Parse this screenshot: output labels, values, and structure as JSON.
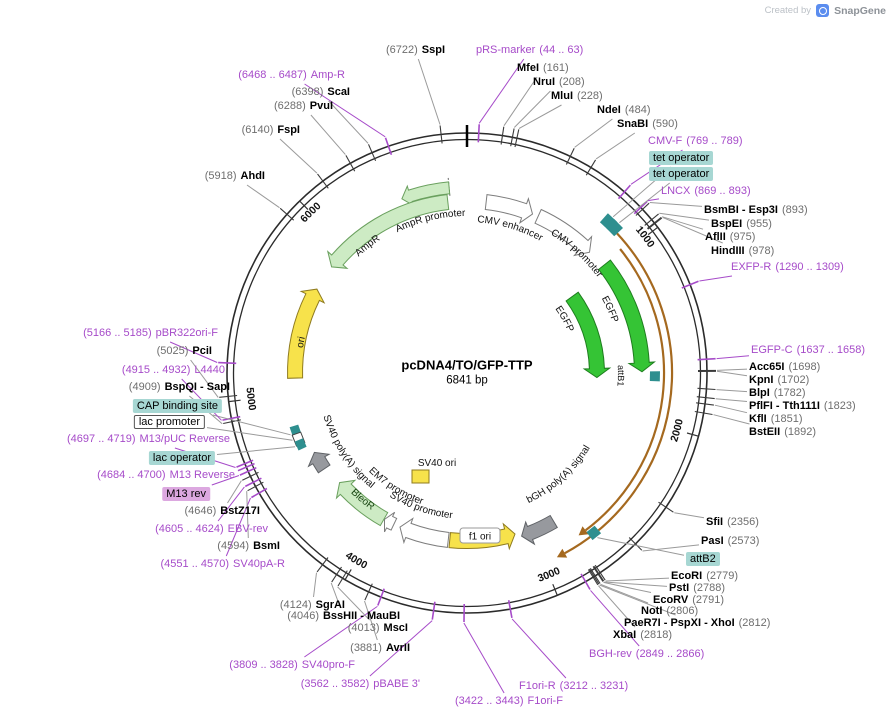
{
  "header": {
    "credit": "Created by",
    "brand": "SnapGene"
  },
  "plasmid": {
    "name": "p cDNA4/TO/GFP-TTP",
    "name_fixed": "pcDNA4/TO/GFP-TTP",
    "size": "6841 bp"
  },
  "axis_ticks": [
    "1000",
    "2000",
    "3000",
    "4000",
    "5000",
    "6000"
  ],
  "features": {
    "ampr_promoter": "AmpR promoter",
    "ampr": "AmpR",
    "ori": "ori",
    "cmv_enhancer": "CMV enhancer",
    "cmv_promoter": "CMV promoter",
    "egfp_outer": "EGFP",
    "egfp_inner": "EGFP",
    "attb1": "attB1",
    "bgh_polya": "bGH poly(A) signal",
    "f1_ori": "f1 ori",
    "sv40_promoter": "SV40 promoter",
    "sv40_ori": "SV40 ori",
    "em7_promoter": "EM7 promoter",
    "bleor": "BleoR",
    "sv40_polya": "SV40 poly(A) signal"
  },
  "labels": [
    {
      "name": "pRS-marker",
      "pos": "(44 .. 63)"
    },
    {
      "name": "MfeI",
      "pos": "(161)"
    },
    {
      "name": "NruI",
      "pos": "(208)"
    },
    {
      "name": "MluI",
      "pos": "(228)"
    },
    {
      "name": "NdeI",
      "pos": "(484)"
    },
    {
      "name": "SnaBI",
      "pos": "(590)"
    },
    {
      "name": "CMV-F",
      "pos": "(769 .. 789)"
    },
    {
      "name": "tet operator",
      "pos": ""
    },
    {
      "name": "tet operator",
      "pos": ""
    },
    {
      "name": "LNCX",
      "pos": "(869 .. 893)"
    },
    {
      "name": "BsmBI - Esp3I",
      "pos": "(893)"
    },
    {
      "name": "BspEI",
      "pos": "(955)"
    },
    {
      "name": "AflII",
      "pos": "(975)"
    },
    {
      "name": "HindIII",
      "pos": "(978)"
    },
    {
      "name": "EXFP-R",
      "pos": "(1290 .. 1309)"
    },
    {
      "name": "EGFP-C",
      "pos": "(1637 .. 1658)"
    },
    {
      "name": "Acc65I",
      "pos": "(1698)"
    },
    {
      "name": "KpnI",
      "pos": "(1702)"
    },
    {
      "name": "BlpI",
      "pos": "(1782)"
    },
    {
      "name": "PflFI - Tth111I",
      "pos": "(1823)"
    },
    {
      "name": "KflI",
      "pos": "(1851)"
    },
    {
      "name": "BstEII",
      "pos": "(1892)"
    },
    {
      "name": "SfiI",
      "pos": "(2356)"
    },
    {
      "name": "PasI",
      "pos": "(2573)"
    },
    {
      "name": "attB2",
      "pos": ""
    },
    {
      "name": "EcoRI",
      "pos": "(2779)"
    },
    {
      "name": "PstI",
      "pos": "(2788)"
    },
    {
      "name": "EcoRV",
      "pos": "(2791)"
    },
    {
      "name": "NotI",
      "pos": "(2806)"
    },
    {
      "name": "PaeR7I - PspXI - XhoI",
      "pos": "(2812)"
    },
    {
      "name": "XbaI",
      "pos": "(2818)"
    },
    {
      "name": "BGH-rev",
      "pos": "(2849 .. 2866)"
    },
    {
      "name": "F1ori-R",
      "pos": "(3212 .. 3231)"
    },
    {
      "name": "F1ori-F",
      "pos": "(3422 .. 3443)"
    },
    {
      "name": "pBABE 3'",
      "pos": "(3562 .. 3582)"
    },
    {
      "name": "SV40pro-F",
      "pos": "(3809 .. 3828)"
    },
    {
      "name": "AvrII",
      "pos": "(3881)"
    },
    {
      "name": "MscI",
      "pos": "(4013)"
    },
    {
      "name": "BssHII - MauBI",
      "pos": "(4046)"
    },
    {
      "name": "SgrAI",
      "pos": "(4124)"
    },
    {
      "name": "SV40pA-R",
      "pos": "(4551 .. 4570)"
    },
    {
      "name": "BsmI",
      "pos": "(4594)"
    },
    {
      "name": "EBV-rev",
      "pos": "(4605 .. 4624)"
    },
    {
      "name": "BstZ17I",
      "pos": "(4646)"
    },
    {
      "name": "M13 rev",
      "pos": ""
    },
    {
      "name": "M13 Reverse",
      "pos": "(4684 .. 4700)"
    },
    {
      "name": "lac operator",
      "pos": ""
    },
    {
      "name": "M13/pUC Reverse",
      "pos": "(4697 .. 4719)"
    },
    {
      "name": "lac promoter",
      "pos": ""
    },
    {
      "name": "CAP binding site",
      "pos": ""
    },
    {
      "name": "BspQI - SapI",
      "pos": "(4909)"
    },
    {
      "name": "L4440",
      "pos": "(4915 .. 4932)"
    },
    {
      "name": "PciI",
      "pos": "(5025)"
    },
    {
      "name": "pBR322ori-F",
      "pos": "(5166 .. 5185)"
    },
    {
      "name": "AhdI",
      "pos": "(5918)"
    },
    {
      "name": "FspI",
      "pos": "(6140)"
    },
    {
      "name": "PvuI",
      "pos": "(6288)"
    },
    {
      "name": "ScaI",
      "pos": "(6398)"
    },
    {
      "name": "Amp-R",
      "pos": "(6468 .. 6487)"
    },
    {
      "name": "SspI",
      "pos": "(6722)"
    }
  ],
  "colors": {
    "primer": "#A64BC9",
    "position_grey": "#6E6E6E",
    "line_grey": "#9A9A9A",
    "tick_dark": "#3A3A3A",
    "teal_label_bg": "#A7D7D3",
    "purple_label_bg": "#DCA8E0",
    "egfp_green": "#35C435",
    "egfp_border": "#1E7D1E",
    "pale_green": "#CDEBC4",
    "pale_green_border": "#6AA05E",
    "yellow": "#F7E24B",
    "yellow_border": "#8F7B1F",
    "grey_arrow": "#97999E",
    "grey_arrow_border": "#5F6266",
    "brown": "#A5691F",
    "teal_feature": "#2E8F8F",
    "ring": "#2B2B2B"
  }
}
